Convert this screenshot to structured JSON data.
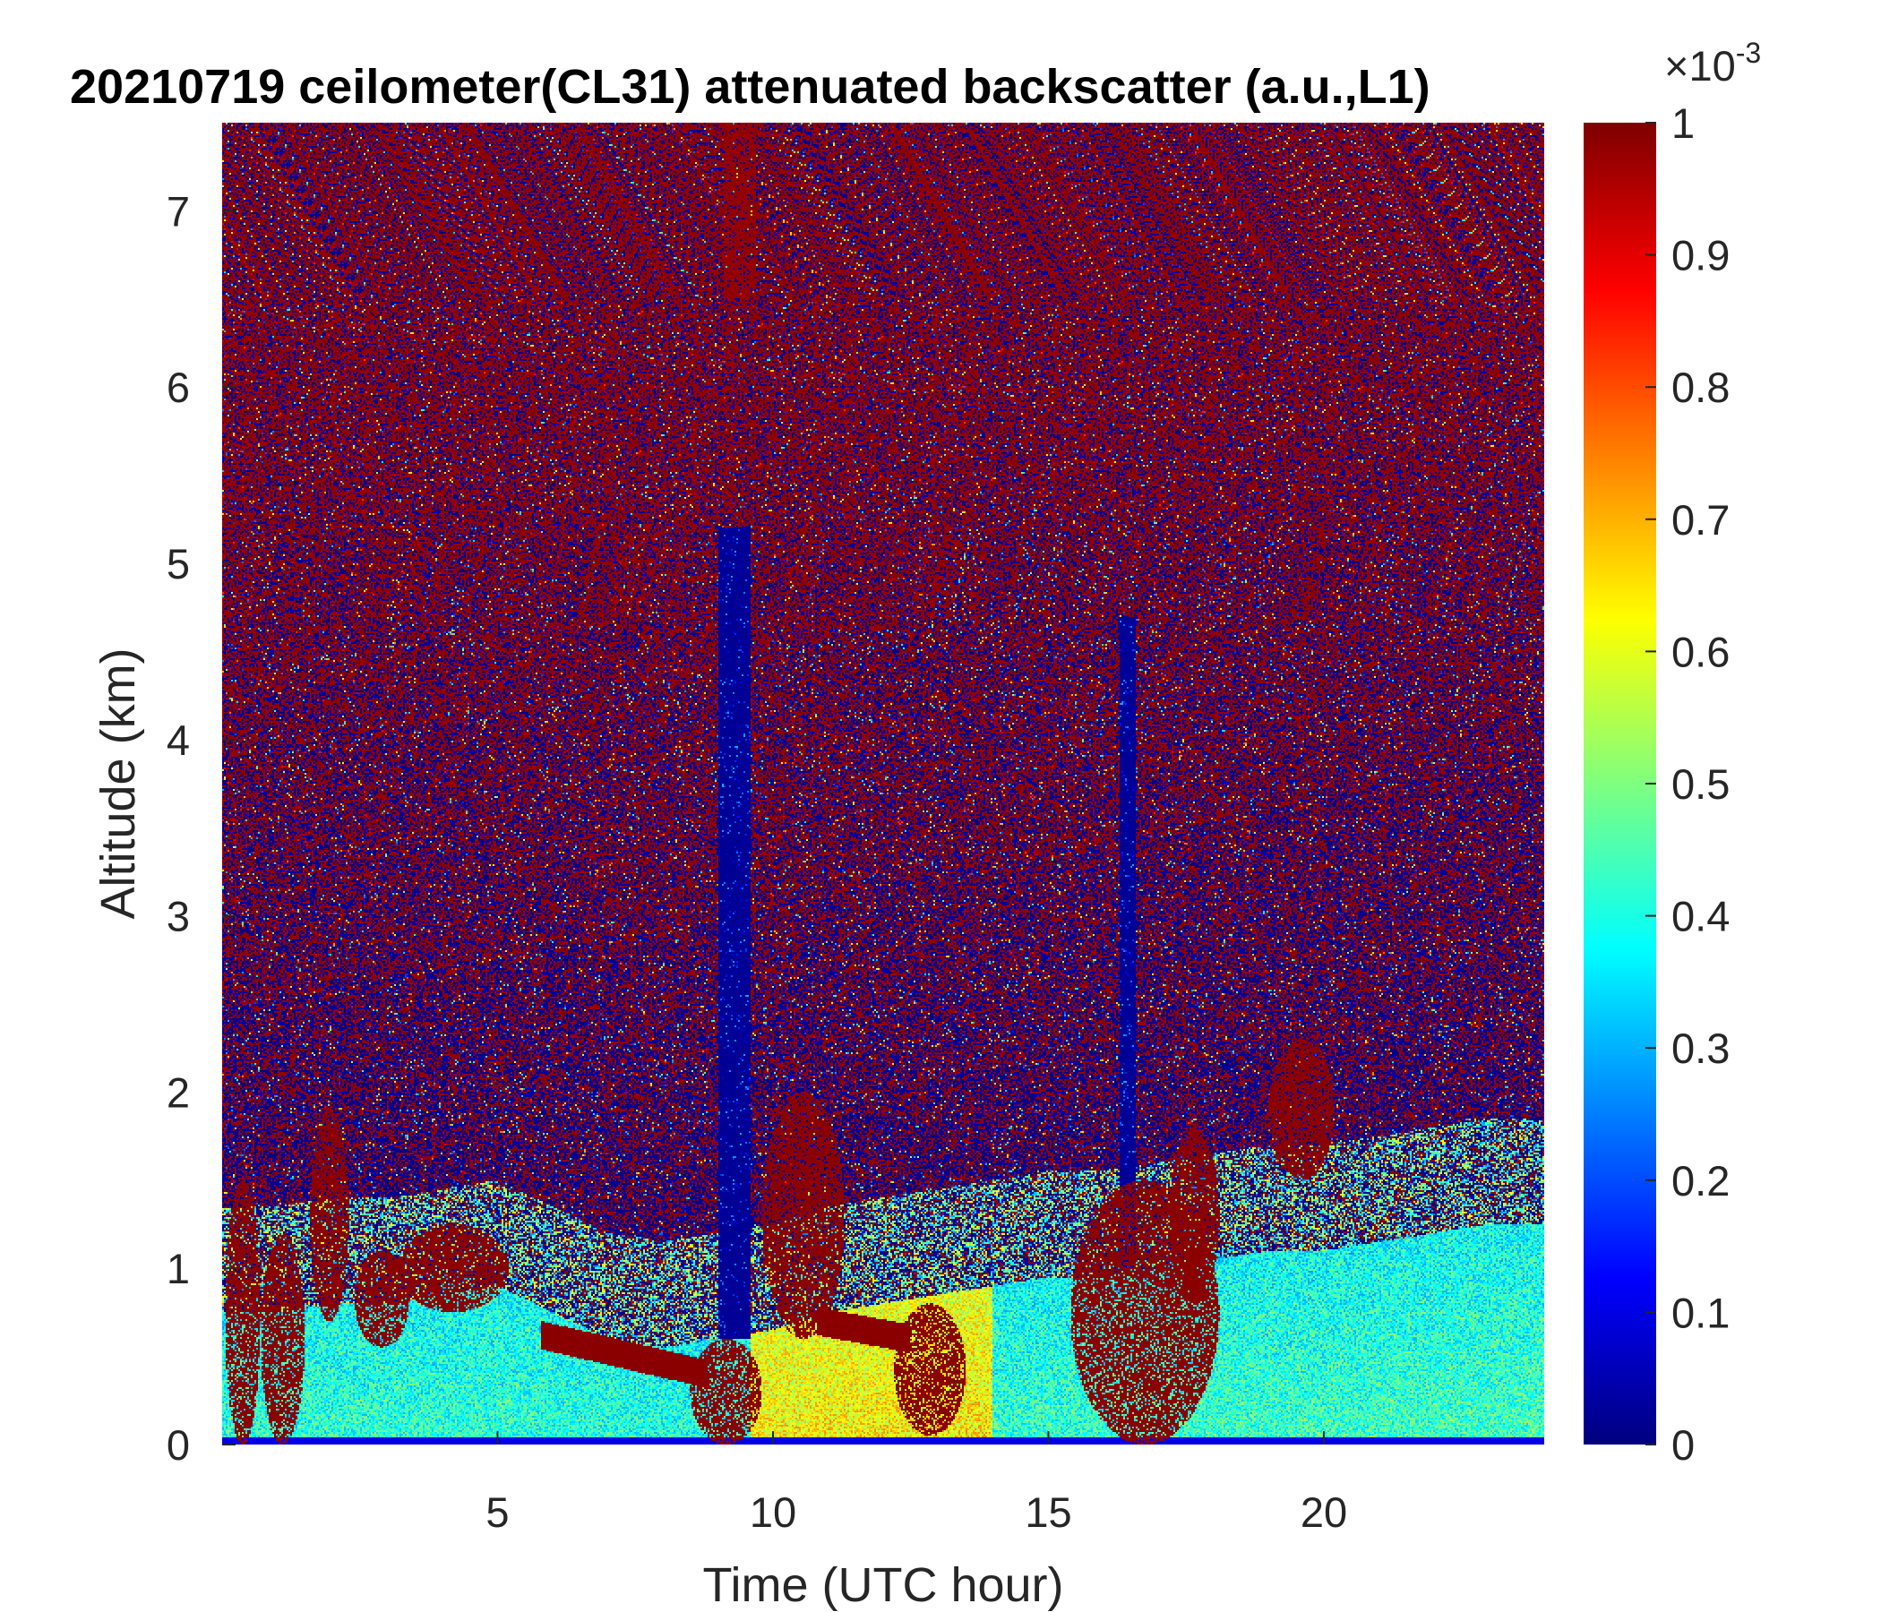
{
  "chart_data": {
    "type": "heatmap",
    "title": "20210719 ceilometer(CL31) attenuated backscatter (a.u.,L1)",
    "xlabel": "Time (UTC hour)",
    "ylabel": "Altitude (km)",
    "xlim": [
      0,
      24
    ],
    "ylim": [
      0,
      7.5
    ],
    "x_ticks": [
      5,
      10,
      15,
      20
    ],
    "y_ticks": [
      0,
      1,
      2,
      3,
      4,
      5,
      6,
      7
    ],
    "colorbar": {
      "colormap": "jet",
      "range": [
        0,
        1
      ],
      "ticks": [
        0,
        0.1,
        0.2,
        0.3,
        0.4,
        0.5,
        0.6,
        0.7,
        0.8,
        0.9,
        1
      ],
      "tick_labels": [
        "0",
        "0.1",
        "0.2",
        "0.3",
        "0.4",
        "0.5",
        "0.6",
        "0.7",
        "0.8",
        "0.9",
        "1"
      ],
      "exponent_base": "×10",
      "exponent_power": "-3"
    },
    "features": {
      "boundary_layer_top_km": [
        0.75,
        0.75,
        0.8,
        0.8,
        0.85,
        0.9,
        0.75,
        0.6,
        0.55,
        0.6,
        0.65,
        0.75,
        0.8,
        0.85,
        0.9,
        0.95,
        0.95,
        1.0,
        1.05,
        1.1,
        1.1,
        1.15,
        1.2,
        1.25,
        1.25
      ],
      "aerosol_layer": [
        {
          "x": [
            5.8,
            8.8
          ],
          "y": [
            0.62,
            0.4
          ]
        },
        {
          "x": [
            10.8,
            12.5
          ],
          "y": [
            0.7,
            0.6
          ]
        }
      ],
      "clouds": [
        {
          "x": [
            0.05,
            0.7
          ],
          "y": [
            0.0,
            1.5
          ]
        },
        {
          "x": [
            0.7,
            1.5
          ],
          "y": [
            0.0,
            1.2
          ]
        },
        {
          "x": [
            1.6,
            2.3
          ],
          "y": [
            0.7,
            1.9
          ]
        },
        {
          "x": [
            2.4,
            3.4
          ],
          "y": [
            0.55,
            1.1
          ]
        },
        {
          "x": [
            3.2,
            5.2
          ],
          "y": [
            0.75,
            1.25
          ]
        },
        {
          "x": [
            8.5,
            9.8
          ],
          "y": [
            0.0,
            0.6
          ]
        },
        {
          "x": [
            9.8,
            11.3
          ],
          "y": [
            0.6,
            2.0
          ]
        },
        {
          "x": [
            12.2,
            13.5
          ],
          "y": [
            0.05,
            0.8
          ]
        },
        {
          "x": [
            15.4,
            18.1
          ],
          "y": [
            0.0,
            1.5
          ]
        },
        {
          "x": [
            17.2,
            18.1
          ],
          "y": [
            0.8,
            1.8
          ]
        },
        {
          "x": [
            19.0,
            20.2
          ],
          "y": [
            1.5,
            2.3
          ]
        }
      ],
      "attenuated_columns": [
        {
          "x": [
            9.0,
            9.6
          ],
          "y": [
            0.6,
            5.2
          ]
        },
        {
          "x": [
            16.3,
            16.6
          ],
          "y": [
            1.0,
            4.7
          ]
        }
      ],
      "high_noise_columns": [
        {
          "x": [
            9.1,
            9.7
          ],
          "y": [
            6.5,
            7.5
          ]
        }
      ]
    }
  }
}
